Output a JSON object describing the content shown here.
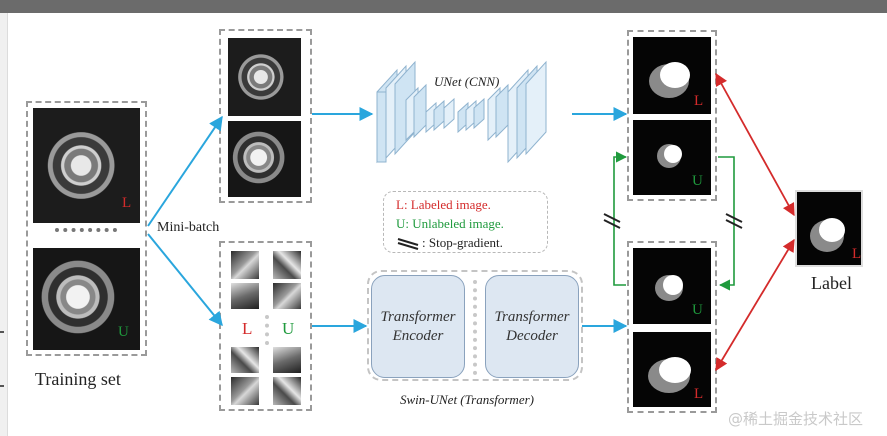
{
  "training_set": {
    "label": "Training set",
    "labeled_mark": "L",
    "unlabeled_mark": "U"
  },
  "mini_batch_label": "Mini-batch",
  "unet": {
    "title": "UNet (CNN)"
  },
  "swin": {
    "title": "Swin-UNet (Transformer)",
    "encoder": "Transformer Encoder",
    "decoder": "Transformer Decoder"
  },
  "legend": {
    "labeled": "L: Labeled image.",
    "unlabeled": "U: Unlabeled image.",
    "stop_gradient": ": Stop-gradient."
  },
  "patch_marks": {
    "left": "L",
    "right": "U"
  },
  "outputs": {
    "marks": [
      "L",
      "U",
      "U",
      "L"
    ]
  },
  "label_text": "Label",
  "label_mark": "L",
  "watermark": "@稀土掘金技术社区",
  "colors": {
    "red": "#d42b2b",
    "green": "#1f9a3d",
    "blue_arrow": "#2aa6dd",
    "net_blue": "#cfe4f3"
  }
}
